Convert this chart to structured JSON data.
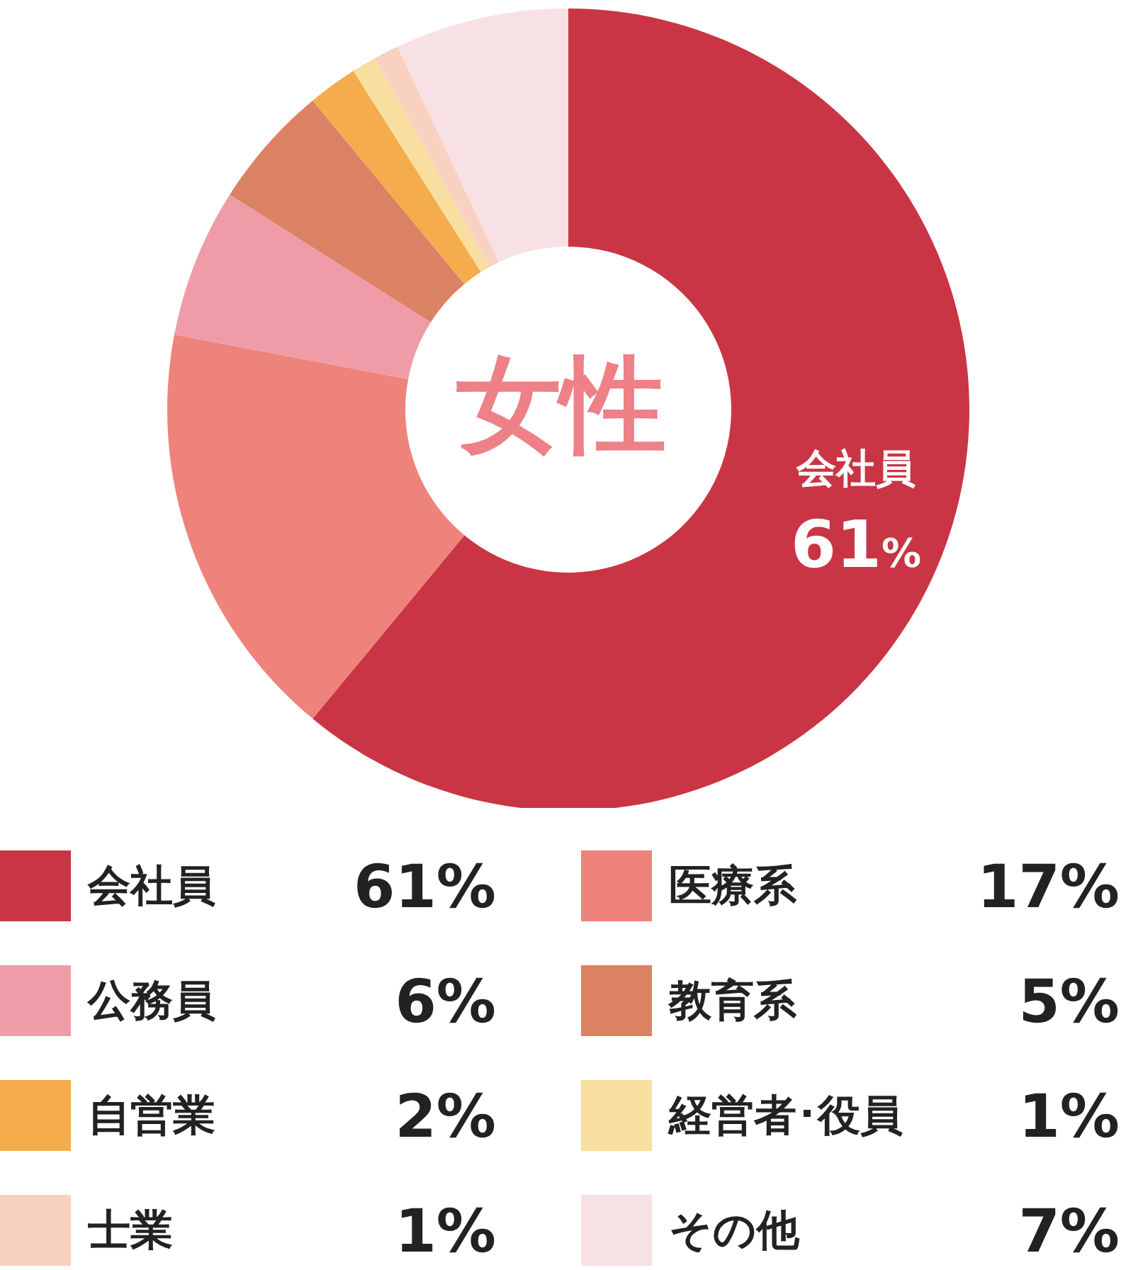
{
  "chart_data": {
    "type": "donut",
    "title": "女性",
    "categories": [
      "会社員",
      "医療系",
      "公務員",
      "教育系",
      "自営業",
      "経営者･役員",
      "士業",
      "その他"
    ],
    "values": [
      61,
      17,
      6,
      5,
      2,
      1,
      1,
      7
    ],
    "colors": [
      "#c93544",
      "#ee837c",
      "#f09ca8",
      "#dc8264",
      "#f4ac4c",
      "#f8dfa0",
      "#f9d1c0",
      "#f7e1e4"
    ],
    "value_labels": [
      "61%",
      "17%",
      "6%",
      "5%",
      "2%",
      "1%",
      "1%",
      "7%"
    ],
    "legend": "bottom"
  }
}
